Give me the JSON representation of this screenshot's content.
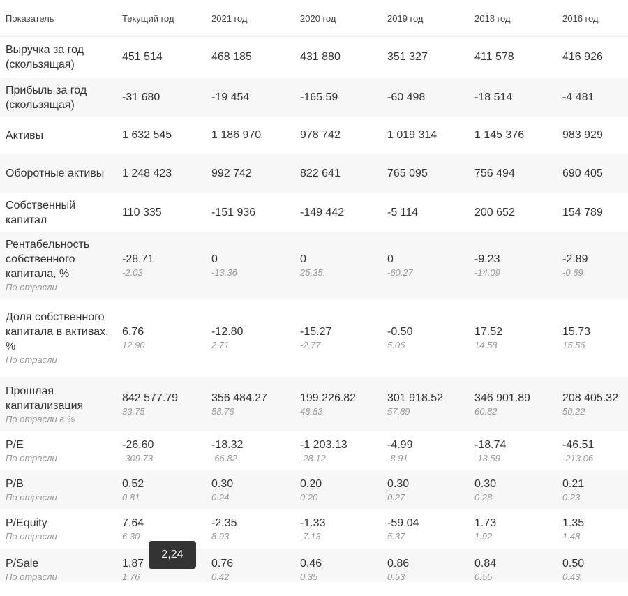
{
  "table": {
    "header": [
      "Показатель",
      "Текущий год",
      "2021 год",
      "2020 год",
      "2019 год",
      "2018 год",
      "2016 год"
    ],
    "rows": [
      {
        "label": "Выручка за год (скользящая)",
        "values": [
          "451 514",
          "468 185",
          "431 880",
          "351 327",
          "411 578",
          "416 926"
        ]
      },
      {
        "label": "Прибыль за год (скользящая)",
        "values": [
          "-31 680",
          "-19 454",
          "-165.59",
          "-60 498",
          "-18 514",
          "-4 481"
        ]
      },
      {
        "label": "Активы",
        "values": [
          "1 632 545",
          "1 186 970",
          "978 742",
          "1 019 314",
          "1 145 376",
          "983 929"
        ]
      },
      {
        "label": "Оборотные активы",
        "values": [
          "1 248 423",
          "992 742",
          "822 641",
          "765 095",
          "756 494",
          "690 405"
        ]
      },
      {
        "label": "Собственный капитал",
        "values": [
          "110 335",
          "-151 936",
          "-149 442",
          "-5 114",
          "200 652",
          "154 789"
        ]
      },
      {
        "label": "Рентабельность собственного капитала, %",
        "sublabel": "По отрасли",
        "values": [
          "-28.71",
          "0",
          "0",
          "0",
          "-9.23",
          "-2.89"
        ],
        "subvalues": [
          "-2.03",
          "-13.36",
          "25.35",
          "-60.27",
          "-14.09",
          "-0.69"
        ]
      },
      {
        "label": "Доля собственного капитала в активах, %",
        "sublabel": "По отрасли",
        "values": [
          "6.76",
          "-12.80",
          "-15.27",
          "-0.50",
          "17.52",
          "15.73"
        ],
        "subvalues": [
          "12.90",
          "2.71",
          "-2.77",
          "5.06",
          "14.58",
          "15.56"
        ]
      },
      {
        "label": "Прошлая капитализация",
        "sublabel": "По отрасли в %",
        "values": [
          "842 577.79",
          "356 484.27",
          "199 226.82",
          "301 918.52",
          "346 901.89",
          "208 405.32"
        ],
        "subvalues": [
          "33.75",
          "58.76",
          "48.83",
          "57.89",
          "60.82",
          "50.22"
        ]
      },
      {
        "label": "P/E",
        "sublabel": "По отрасли",
        "values": [
          "-26.60",
          "-18.32",
          "-1 203.13",
          "-4.99",
          "-18.74",
          "-46.51"
        ],
        "subvalues": [
          "-309.73",
          "-66.82",
          "-28.12",
          "-8.91",
          "-13.59",
          "-213.06"
        ]
      },
      {
        "label": "P/B",
        "sublabel": "По отрасли",
        "values": [
          "0.52",
          "0.30",
          "0.20",
          "0.30",
          "0.30",
          "0.21"
        ],
        "subvalues": [
          "0.81",
          "0.24",
          "0.20",
          "0.27",
          "0.28",
          "0.23"
        ]
      },
      {
        "label": "P/Equity",
        "sublabel": "По отрасли",
        "values": [
          "7.64",
          "-2.35",
          "-1.33",
          "-59.04",
          "1.73",
          "1.35"
        ],
        "subvalues": [
          "6.30",
          "8.93",
          "-7.13",
          "5.37",
          "1.92",
          "1.48"
        ]
      },
      {
        "label": "P/Sale",
        "sublabel": "По отрасли",
        "values": [
          "1.87",
          "0.76",
          "0.46",
          "0.86",
          "0.84",
          "0.50"
        ],
        "subvalues": [
          "1.76",
          "0.42",
          "0.35",
          "0.53",
          "0.55",
          "0.43"
        ]
      }
    ]
  },
  "tooltip": "2,24"
}
